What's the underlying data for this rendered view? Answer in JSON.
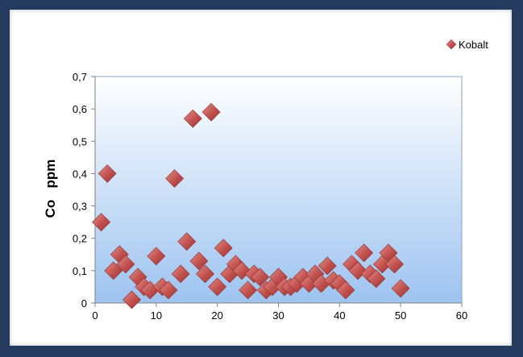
{
  "chart_data": {
    "type": "scatter",
    "title": "",
    "xlabel": "",
    "ylabel": "Co   ppm",
    "xlim": [
      0,
      60
    ],
    "ylim": [
      0,
      0.7
    ],
    "x_ticks": [
      "0",
      "10",
      "20",
      "30",
      "40",
      "50",
      "60"
    ],
    "y_ticks": [
      "0",
      "0,1",
      "0,2",
      "0,3",
      "0,4",
      "0,5",
      "0,6",
      "0,7"
    ],
    "grid": false,
    "legend_position": "top-right",
    "series": [
      {
        "name": "Kobalt",
        "color": "#c0504d",
        "marker": "diamond",
        "points": [
          [
            1,
            0.25
          ],
          [
            2,
            0.4
          ],
          [
            3,
            0.1
          ],
          [
            4,
            0.15
          ],
          [
            5,
            0.12
          ],
          [
            6,
            0.01
          ],
          [
            7,
            0.08
          ],
          [
            8,
            0.05
          ],
          [
            9,
            0.04
          ],
          [
            10,
            0.145
          ],
          [
            11,
            0.05
          ],
          [
            12,
            0.04
          ],
          [
            13,
            0.385
          ],
          [
            14,
            0.09
          ],
          [
            15,
            0.19
          ],
          [
            16,
            0.57
          ],
          [
            17,
            0.13
          ],
          [
            18,
            0.09
          ],
          [
            19,
            0.59
          ],
          [
            20,
            0.05
          ],
          [
            21,
            0.17
          ],
          [
            22,
            0.09
          ],
          [
            23,
            0.12
          ],
          [
            24,
            0.1
          ],
          [
            25,
            0.04
          ],
          [
            26,
            0.09
          ],
          [
            27,
            0.08
          ],
          [
            28,
            0.04
          ],
          [
            29,
            0.05
          ],
          [
            30,
            0.08
          ],
          [
            31,
            0.05
          ],
          [
            32,
            0.05
          ],
          [
            33,
            0.06
          ],
          [
            34,
            0.08
          ],
          [
            35,
            0.06
          ],
          [
            36,
            0.09
          ],
          [
            37,
            0.06
          ],
          [
            38,
            0.115
          ],
          [
            39,
            0.07
          ],
          [
            40,
            0.06
          ],
          [
            41,
            0.04
          ],
          [
            42,
            0.12
          ],
          [
            43,
            0.1
          ],
          [
            44,
            0.155
          ],
          [
            45,
            0.09
          ],
          [
            46,
            0.075
          ],
          [
            47,
            0.12
          ],
          [
            48,
            0.155
          ],
          [
            49,
            0.12
          ],
          [
            50,
            0.045
          ]
        ]
      }
    ]
  }
}
